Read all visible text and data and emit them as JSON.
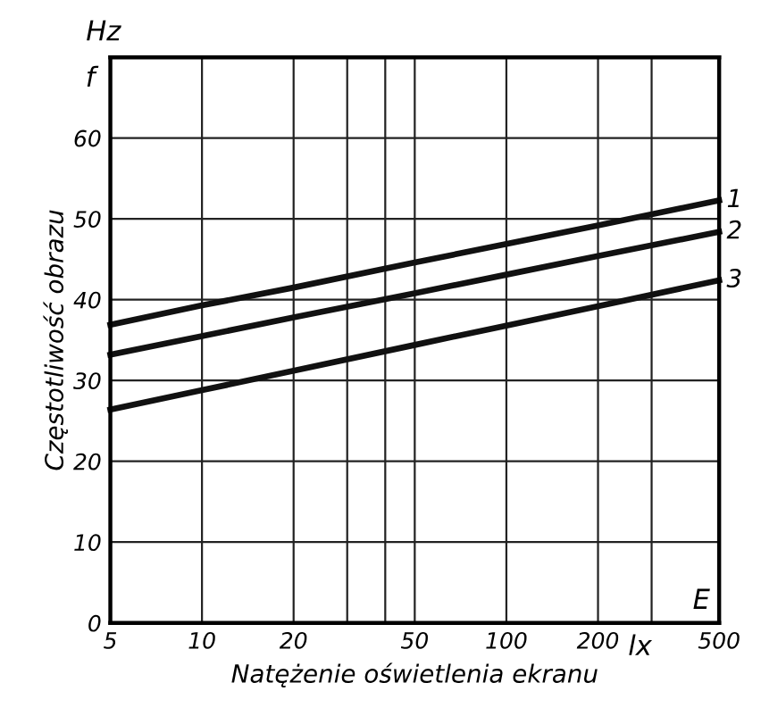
{
  "chart_data": {
    "type": "line",
    "xlabel": "Natężenie oświetlenia ekranu",
    "ylabel": "Częstotliwość obrazu",
    "annotations": [
      "Hz",
      "f",
      "E",
      "lx"
    ],
    "log": "x",
    "xlim": [
      5,
      500
    ],
    "ylim": [
      0,
      70
    ],
    "xticks": [
      5,
      10,
      20,
      {
        "value": 30,
        "label": null
      },
      {
        "value": 40,
        "label": null
      },
      50,
      100,
      200,
      {
        "value": 300,
        "label": null
      },
      500
    ],
    "yticks": [
      0,
      10,
      20,
      30,
      40,
      50,
      60,
      {
        "value": 70,
        "label": null
      }
    ],
    "grid": true,
    "marker": "none",
    "line_style": "solid",
    "series": [
      {
        "name": "1",
        "color": "#111111",
        "x": [
          5,
          10,
          20,
          50,
          100,
          200,
          500
        ],
        "values": [
          36.9,
          39.3,
          41.5,
          44.6,
          46.9,
          49.2,
          52.3
        ]
      },
      {
        "name": "2",
        "color": "#111111",
        "x": [
          5,
          10,
          20,
          50,
          100,
          200,
          500
        ],
        "values": [
          33.2,
          35.5,
          37.8,
          40.8,
          43.1,
          45.4,
          48.4
        ]
      },
      {
        "name": "3",
        "color": "#111111",
        "x": [
          5,
          10,
          20,
          50,
          100,
          200,
          500
        ],
        "values": [
          26.4,
          28.8,
          31.2,
          34.4,
          36.8,
          39.2,
          42.4
        ]
      }
    ]
  }
}
